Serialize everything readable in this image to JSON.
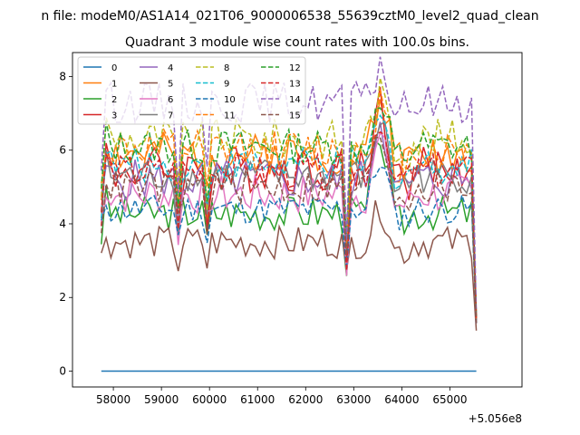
{
  "chart_data": {
    "type": "line",
    "suptitle": "n file: modeM0/AS1A14_021T06_9000006538_55639cztM0_level2_quad_clean",
    "title": "Quadrant 3 module wise count rates with 100.0s bins.",
    "xlabel": "",
    "ylabel": "",
    "x_offset_label": "+5.056e8",
    "xlim": [
      57150,
      66500
    ],
    "ylim": [
      -0.43,
      8.65
    ],
    "x_ticks": [
      58000,
      59000,
      60000,
      61000,
      62000,
      63000,
      64000,
      65000
    ],
    "y_ticks": [
      0,
      2,
      4,
      6,
      8
    ],
    "x_start": 57750,
    "x_step": 100,
    "legend": {
      "position": "top-left",
      "columns": 4
    },
    "series": [
      {
        "name": "0",
        "color": "#1f77b4",
        "dashed": false,
        "base": 0,
        "dip": 0,
        "peak": 0,
        "end": 0,
        "noise": 0,
        "seed": 1
      },
      {
        "name": "1",
        "color": "#ff7f0e",
        "dashed": false,
        "base": 5.9,
        "dip": 2.5,
        "peak": 1.5,
        "end": 1.3,
        "noise": 0.35,
        "seed": 2
      },
      {
        "name": "2",
        "color": "#2ca02c",
        "dashed": false,
        "base": 4.3,
        "dip": 1.3,
        "peak": 2.2,
        "end": 1.4,
        "noise": 0.3,
        "seed": 3
      },
      {
        "name": "3",
        "color": "#d62728",
        "dashed": false,
        "base": 5.5,
        "dip": 2.2,
        "peak": 1.9,
        "end": 1.5,
        "noise": 0.4,
        "seed": 4
      },
      {
        "name": "4",
        "color": "#9467bd",
        "dashed": false,
        "base": 5.2,
        "dip": 2.0,
        "peak": 1.7,
        "end": 1.4,
        "noise": 0.35,
        "seed": 5
      },
      {
        "name": "5",
        "color": "#8c564b",
        "dashed": false,
        "base": 3.5,
        "dip": 1.1,
        "peak": 1.0,
        "end": 1.1,
        "noise": 0.28,
        "seed": 6
      },
      {
        "name": "6",
        "color": "#e377c2",
        "dashed": false,
        "base": 4.8,
        "dip": 1.8,
        "peak": 1.5,
        "end": 1.3,
        "noise": 0.35,
        "seed": 7
      },
      {
        "name": "7",
        "color": "#7f7f7f",
        "dashed": false,
        "base": 5.3,
        "dip": 2.0,
        "peak": 1.6,
        "end": 1.4,
        "noise": 0.3,
        "seed": 8
      },
      {
        "name": "8",
        "color": "#bcbd22",
        "dashed": true,
        "base": 6.3,
        "dip": 2.8,
        "peak": 1.2,
        "end": 1.5,
        "noise": 0.35,
        "seed": 9
      },
      {
        "name": "9",
        "color": "#17becf",
        "dashed": true,
        "base": 5.6,
        "dip": 2.3,
        "peak": 1.3,
        "end": 1.4,
        "noise": 0.3,
        "seed": 10
      },
      {
        "name": "10",
        "color": "#1f77b4",
        "dashed": true,
        "base": 4.4,
        "dip": 1.4,
        "peak": 1.4,
        "end": 1.3,
        "noise": 0.25,
        "seed": 11
      },
      {
        "name": "11",
        "color": "#ff7f0e",
        "dashed": true,
        "base": 6.0,
        "dip": 2.6,
        "peak": 1.3,
        "end": 1.4,
        "noise": 0.35,
        "seed": 12
      },
      {
        "name": "12",
        "color": "#2ca02c",
        "dashed": true,
        "base": 6.1,
        "dip": 2.7,
        "peak": 1.1,
        "end": 1.5,
        "noise": 0.3,
        "seed": 13
      },
      {
        "name": "13",
        "color": "#d62728",
        "dashed": true,
        "base": 5.4,
        "dip": 2.2,
        "peak": 1.5,
        "end": 1.4,
        "noise": 0.3,
        "seed": 14
      },
      {
        "name": "14",
        "color": "#9467bd",
        "dashed": true,
        "base": 7.3,
        "dip": 3.5,
        "peak": 1.0,
        "end": 1.6,
        "noise": 0.35,
        "seed": 15
      },
      {
        "name": "15",
        "color": "#8c564b",
        "dashed": true,
        "base": 5.0,
        "dip": 1.9,
        "peak": 1.5,
        "end": 1.3,
        "noise": 0.3,
        "seed": 16
      }
    ],
    "n_points": 79
  }
}
